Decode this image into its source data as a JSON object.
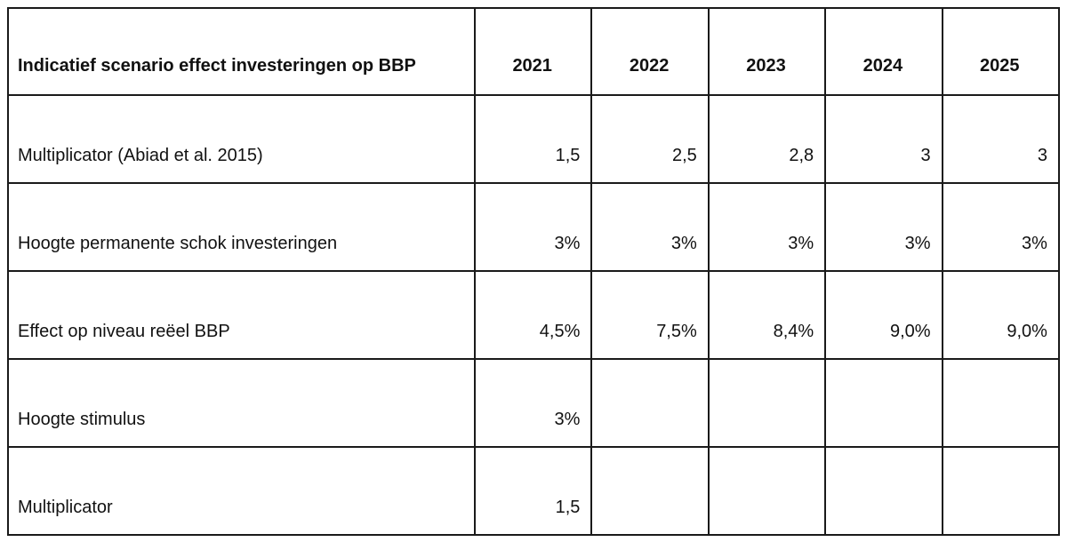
{
  "table": {
    "title": "Indicatief scenario effect investeringen op BBP",
    "years": [
      "2021",
      "2022",
      "2023",
      "2024",
      "2025"
    ],
    "rows": [
      {
        "label": "Multiplicator (Abiad et al. 2015)",
        "values": [
          "1,5",
          "2,5",
          "2,8",
          "3",
          "3"
        ]
      },
      {
        "label": "Hoogte permanente schok investeringen",
        "values": [
          "3%",
          "3%",
          "3%",
          "3%",
          "3%"
        ]
      },
      {
        "label": "Effect op niveau reëel BBP",
        "values": [
          "4,5%",
          "7,5%",
          "8,4%",
          "9,0%",
          "9,0%"
        ]
      },
      {
        "label": "Hoogte stimulus",
        "values": [
          "3%",
          "",
          "",
          "",
          ""
        ]
      },
      {
        "label": "Multiplicator",
        "values": [
          "1,5",
          "",
          "",
          "",
          ""
        ]
      }
    ]
  }
}
